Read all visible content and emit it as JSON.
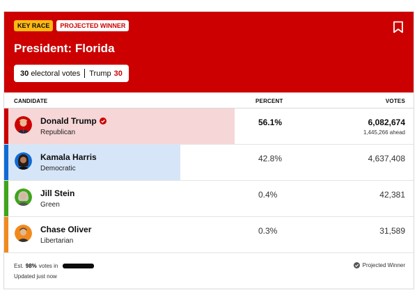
{
  "header": {
    "key_race": "KEY RACE",
    "projected": "PROJECTED WINNER",
    "title": "President: Florida",
    "ev_count": "30",
    "ev_label": "electoral votes",
    "ev_candidate": "Trump",
    "ev_candidate_count": "30",
    "colors": {
      "bg": "#cc0000",
      "key_badge": "#fdb913"
    }
  },
  "columns": {
    "candidate": "CANDIDATE",
    "percent": "PERCENT",
    "votes": "VOTES"
  },
  "candidates": [
    {
      "name": "Donald Trump",
      "party": "Republican",
      "percent": "56.1%",
      "votes": "6,082,674",
      "ahead": "1,445,266 ahead",
      "winner": true,
      "share": 0.561,
      "color": "#cc0000",
      "fill": "#f6d6d7"
    },
    {
      "name": "Kamala Harris",
      "party": "Democratic",
      "percent": "42.8%",
      "votes": "4,637,408",
      "share": 0.428,
      "color": "#0f6bd5",
      "fill": "#d6e6f8"
    },
    {
      "name": "Jill Stein",
      "party": "Green",
      "percent": "0.4%",
      "votes": "42,381",
      "share": 0.004,
      "color": "#3fa51b"
    },
    {
      "name": "Chase Oliver",
      "party": "Libertarian",
      "percent": "0.3%",
      "votes": "31,589",
      "share": 0.003,
      "color": "#f18a1d"
    }
  ],
  "footer": {
    "est_prefix": "Est.",
    "est_pct": "98%",
    "est_suffix": "votes in",
    "updated": "Updated just now",
    "projected_winner": "Projected Winner"
  }
}
